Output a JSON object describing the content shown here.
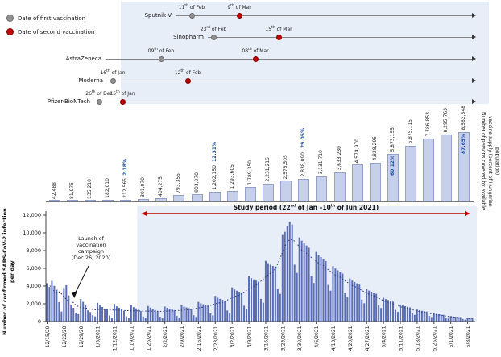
{
  "colors": {
    "first_dose": "#8f8f8f",
    "first_dose_border": "#6e6e6e",
    "second_dose": "#c00000",
    "second_dose_border": "#8a0000",
    "supply_bar_fill": "#c7d0ea",
    "supply_bar_border": "#93a0c9",
    "pct_label": "#1d4fa1",
    "daily_bar": "#5a6db6",
    "ma_line": "#27387e",
    "study_red": "#c00000",
    "shade": "#e8eef8",
    "axis": "#444444"
  },
  "legend": {
    "items": [
      {
        "label": "Date of first vaccination"
      },
      {
        "label": "Date of second vaccination"
      }
    ]
  },
  "labels": {
    "left_axis": "Number of confirmed SARS-CoV-2 infection per day",
    "right_axis": "Number of persons covered by available vaccine supply (percent of Hungarian population)",
    "study_period": "Study period (22nd of Jan –10th of Jun 2021)",
    "launch": [
      "Launch of",
      "vaccination",
      "campaign",
      "(Dec 26, 2020)"
    ]
  },
  "chart_data": [
    {
      "type": "timeline",
      "title": "First and second vaccination start dates by vaccine",
      "arrow_end": 586,
      "rows": [
        {
          "name": "Sputnik-V",
          "y": 19,
          "line_start": 218,
          "first": {
            "label": "11th of Feb",
            "x": 238
          },
          "second": {
            "label": "9th of Mar",
            "x": 297
          }
        },
        {
          "name": "Sinopharm",
          "y": 46,
          "line_start": 258,
          "first": {
            "label": "23rd of Feb",
            "x": 265
          },
          "second": {
            "label": "15th of Mar",
            "x": 346
          }
        },
        {
          "name": "AstraZeneca",
          "y": 73,
          "line_start": 131,
          "first": {
            "label": "09th of Feb",
            "x": 200
          },
          "second": {
            "label": "08th of Mar",
            "x": 317
          }
        },
        {
          "name": "Moderna",
          "y": 100,
          "line_start": 133,
          "first": {
            "label": "16th of Jan",
            "x": 140
          },
          "second": {
            "label": "12th of Feb",
            "x": 233
          }
        },
        {
          "name": "Pfizer-BioNTech",
          "y": 126,
          "line_start": 117,
          "first": {
            "label": "26th of Dec",
            "x": 123
          },
          "second": {
            "label": "15th of Jan",
            "x": 152
          }
        }
      ]
    },
    {
      "type": "bar",
      "title": "Number of persons covered by available vaccine supply (percent of Hungarian population)",
      "bars": [
        {
          "label": "42,488",
          "value": 42488
        },
        {
          "label": "81,975",
          "value": 81975
        },
        {
          "label": "135,210",
          "value": 135210
        },
        {
          "label": "182,010",
          "value": 182010
        },
        {
          "label": "212,565",
          "value": 212565,
          "pct": "2.18%",
          "pct_pos": "above"
        },
        {
          "label": "301,070",
          "value": 301070
        },
        {
          "label": "404,275",
          "value": 404275
        },
        {
          "label": "793,355",
          "value": 793355
        },
        {
          "label": "903,070",
          "value": 903070
        },
        {
          "label": "1,202,150",
          "value": 1202150,
          "pct": "12.31%",
          "pct_pos": "above"
        },
        {
          "label": "1,293,605",
          "value": 1293605
        },
        {
          "label": "1,789,350",
          "value": 1789350
        },
        {
          "label": "2,231,215",
          "value": 2231215
        },
        {
          "label": "2,578,505",
          "value": 2578505
        },
        {
          "label": "2,838,090",
          "value": 2838090,
          "pct": "29.05%",
          "pct_pos": "above"
        },
        {
          "label": "3,131,710",
          "value": 3131710
        },
        {
          "label": "3,633,230",
          "value": 3633230
        },
        {
          "label": "4,574,970",
          "value": 4574970
        },
        {
          "label": "4,828,295",
          "value": 4828295
        },
        {
          "label": "5,873,155",
          "value": 5873155,
          "pct": "60.12%",
          "pct_pos": "inside"
        },
        {
          "label": "6,875,115",
          "value": 6875115
        },
        {
          "label": "7,786,853",
          "value": 7786853
        },
        {
          "label": "8,295,763",
          "value": 8295763
        },
        {
          "label": "8,562,548",
          "value": 8562548,
          "pct": "87.65%",
          "pct_pos": "inside"
        }
      ]
    },
    {
      "type": "bar",
      "title": "Number of confirmed SARS-CoV-2 infection per day",
      "ylim": [
        0,
        12000
      ],
      "y_tick_labels": [
        "0",
        "2,000",
        "4,000",
        "6,000",
        "8,000",
        "10,000",
        "12,000"
      ],
      "x_tick_labels": [
        "12/15/20",
        "12/22/20",
        "12/29/20",
        "1/5/2021",
        "1/12/2021",
        "1/19/2021",
        "1/26/2021",
        "2/2/2021",
        "2/9/2021",
        "2/16/2021",
        "2/23/2021",
        "3/2/2021",
        "3/9/2021",
        "3/16/2021",
        "3/23/2021",
        "3/30/2021",
        "4/6/2021",
        "4/13/2021",
        "4/20/2021",
        "4/27/2021",
        "5/4/2021",
        "5/11/2021",
        "5/18/2021",
        "5/25/2021",
        "6/1/2021",
        "6/8/2021"
      ],
      "tick_every_days": 7,
      "study_period": {
        "start_day_index": 38
      },
      "launch_day_index": 11,
      "values": [
        4320,
        3900,
        4590,
        4020,
        3580,
        2190,
        1120,
        3790,
        4100,
        2940,
        1890,
        1540,
        980,
        820,
        2560,
        2220,
        1920,
        1250,
        1060,
        710,
        580,
        2120,
        1850,
        1640,
        1420,
        1320,
        680,
        450,
        1980,
        1710,
        1550,
        1380,
        1210,
        590,
        410,
        1850,
        1620,
        1480,
        1330,
        1170,
        560,
        390,
        1750,
        1580,
        1440,
        1290,
        1130,
        540,
        380,
        1690,
        1550,
        1460,
        1370,
        1280,
        620,
        440,
        1820,
        1680,
        1590,
        1510,
        1430,
        710,
        520,
        2210,
        2050,
        1950,
        1870,
        1780,
        920,
        680,
        2890,
        2680,
        2560,
        2450,
        2340,
        1240,
        950,
        3850,
        3610,
        3480,
        3360,
        3250,
        1780,
        1420,
        5120,
        4890,
        4750,
        4620,
        4490,
        2560,
        2110,
        6850,
        6580,
        6420,
        6280,
        6150,
        3680,
        3120,
        9850,
        10120,
        10800,
        11250,
        10950,
        6420,
        5480,
        9480,
        9120,
        8850,
        8580,
        8320,
        5120,
        4350,
        7850,
        7520,
        7280,
        7050,
        6820,
        4120,
        3480,
        6250,
        5980,
        5780,
        5590,
        5410,
        3250,
        2720,
        4850,
        4620,
        4460,
        4310,
        4160,
        2480,
        2060,
        3680,
        3490,
        3360,
        3240,
        3120,
        1850,
        1520,
        2680,
        2530,
        2430,
        2340,
        2250,
        1320,
        1080,
        1920,
        1810,
        1730,
        1660,
        1590,
        920,
        750,
        1350,
        1270,
        1210,
        1160,
        1110,
        640,
        510,
        920,
        860,
        820,
        780,
        750,
        420,
        340,
        610,
        570,
        540,
        510,
        490,
        270,
        210,
        390,
        360,
        340
      ]
    }
  ]
}
